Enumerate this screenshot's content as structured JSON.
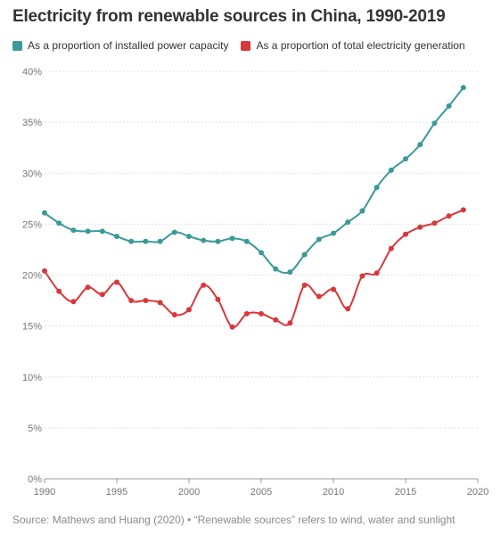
{
  "title": "Electricity from renewable sources in China, 1990-2019",
  "legend": [
    {
      "label": "As a proportion of installed power capacity",
      "color": "#3a9a9a"
    },
    {
      "label": "As a proportion of total electricity generation",
      "color": "#d8383a"
    }
  ],
  "source": "Source: Mathews and Huang (2020) • “Renewable sources” refers to wind, water and sunlight",
  "chart_data": {
    "type": "line",
    "x_ticks": [
      "1990",
      "1995",
      "2000",
      "2005",
      "2010",
      "2015",
      "2020"
    ],
    "y_ticks": [
      "0%",
      "5%",
      "10%",
      "15%",
      "20%",
      "25%",
      "30%",
      "35%",
      "40%"
    ],
    "xlim": [
      1990,
      2020
    ],
    "ylim": [
      0,
      40
    ],
    "grid": true,
    "legend_position": "top-left",
    "series": [
      {
        "name": "As a proportion of installed power capacity",
        "color": "#3a9a9a",
        "x": [
          1990,
          1991,
          1992,
          1993,
          1994,
          1995,
          1996,
          1997,
          1998,
          1999,
          2000,
          2001,
          2002,
          2003,
          2004,
          2005,
          2006,
          2007,
          2008,
          2009,
          2010,
          2011,
          2012,
          2013,
          2014,
          2015,
          2016,
          2017,
          2018,
          2019
        ],
        "y": [
          26.1,
          25.1,
          24.4,
          24.3,
          24.3,
          23.8,
          23.3,
          23.3,
          23.3,
          24.2,
          23.8,
          23.4,
          23.3,
          23.6,
          23.3,
          22.2,
          20.6,
          20.3,
          22.0,
          23.5,
          24.1,
          25.2,
          26.3,
          28.6,
          30.3,
          31.4,
          32.8,
          34.9,
          36.6,
          38.4
        ]
      },
      {
        "name": "As a proportion of total electricity generation",
        "color": "#d8383a",
        "x": [
          1990,
          1991,
          1992,
          1993,
          1994,
          1995,
          1996,
          1997,
          1998,
          1999,
          2000,
          2001,
          2002,
          2003,
          2004,
          2005,
          2006,
          2007,
          2008,
          2009,
          2010,
          2011,
          2012,
          2013,
          2014,
          2015,
          2016,
          2017,
          2018,
          2019
        ],
        "y": [
          20.4,
          18.4,
          17.4,
          18.8,
          18.1,
          19.3,
          17.5,
          17.5,
          17.3,
          16.1,
          16.6,
          19.0,
          17.6,
          14.9,
          16.2,
          16.2,
          15.6,
          15.3,
          19.0,
          17.9,
          18.6,
          16.7,
          19.9,
          20.2,
          22.6,
          24.0,
          24.7,
          25.1,
          25.8,
          26.4
        ]
      }
    ]
  }
}
